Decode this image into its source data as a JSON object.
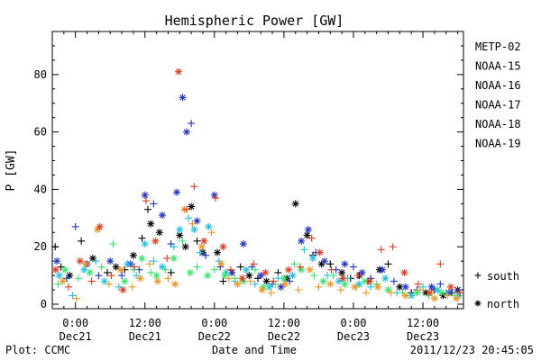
{
  "chart_data": {
    "type": "scatter",
    "title": "Hemispheric Power [GW]",
    "xlabel": "Date and Time",
    "ylabel": "P [GW]",
    "ylim": [
      0,
      95
    ],
    "y_ticks": [
      0,
      20,
      40,
      60,
      80
    ],
    "x_ticks": [
      {
        "time": "0:00",
        "date": "Dec21",
        "h": 0
      },
      {
        "time": "12:00",
        "date": "Dec21",
        "h": 12
      },
      {
        "time": "0:00",
        "date": "Dec22",
        "h": 24
      },
      {
        "time": "12:00",
        "date": "Dec22",
        "h": 36
      },
      {
        "time": "0:00",
        "date": "Dec23",
        "h": 48
      },
      {
        "time": "12:00",
        "date": "Dec23",
        "h": 60
      }
    ],
    "xlim_hours": [
      -4,
      67
    ],
    "grid": false,
    "legend": "right",
    "series": [
      {
        "name": "METP-02",
        "color": "#000000",
        "points": [
          [
            -3.5,
            20
          ],
          [
            -2.5,
            13
          ],
          [
            -1.0,
            10
          ],
          [
            1.0,
            22
          ],
          [
            3.0,
            16
          ],
          [
            5.5,
            11
          ],
          [
            7.0,
            13
          ],
          [
            8.5,
            12
          ],
          [
            10.0,
            17
          ],
          [
            11.5,
            23
          ],
          [
            12.5,
            33
          ],
          [
            13.0,
            28
          ],
          [
            14.5,
            25
          ],
          [
            16.5,
            11
          ],
          [
            18.0,
            24
          ],
          [
            19.0,
            20
          ],
          [
            20.0,
            34
          ],
          [
            21.0,
            22
          ],
          [
            22.0,
            18
          ],
          [
            24.5,
            18
          ],
          [
            25.5,
            8
          ],
          [
            27.0,
            11
          ],
          [
            28.5,
            13
          ],
          [
            30.0,
            10
          ],
          [
            31.5,
            9
          ],
          [
            33.0,
            8
          ],
          [
            35.0,
            11
          ],
          [
            36.5,
            9
          ],
          [
            38.0,
            35
          ],
          [
            40.0,
            24
          ],
          [
            41.0,
            17
          ],
          [
            42.5,
            14
          ],
          [
            44.0,
            14
          ],
          [
            46.0,
            11
          ],
          [
            47.5,
            9
          ],
          [
            49.0,
            10
          ],
          [
            50.5,
            8
          ],
          [
            52.5,
            12
          ],
          [
            54.0,
            14
          ],
          [
            56.0,
            6
          ],
          [
            58.0,
            4
          ],
          [
            60.5,
            4
          ],
          [
            62.0,
            5
          ],
          [
            63.5,
            3
          ],
          [
            65.0,
            4
          ],
          [
            66.0,
            5
          ]
        ],
        "markers": [
          "+",
          "+",
          "*",
          "+",
          "*",
          "+",
          "*",
          "+",
          "*",
          "+",
          "+",
          "*",
          "*",
          "+",
          "*",
          "*",
          "*",
          "+",
          "*",
          "*",
          "+",
          "*",
          "+",
          "*",
          "+",
          "*",
          "+",
          "*",
          "*",
          "*",
          "+",
          "*",
          "+",
          "*",
          "+",
          "*",
          "+",
          "*",
          "+",
          "*",
          "+",
          "*",
          "+",
          "*",
          "+",
          "*"
        ]
      },
      {
        "name": "NOAA-15",
        "color": "#1f2fcf",
        "points": [
          [
            -3.2,
            15
          ],
          [
            -1.5,
            9
          ],
          [
            0.0,
            27
          ],
          [
            2.0,
            14
          ],
          [
            4.0,
            10
          ],
          [
            6.0,
            15
          ],
          [
            8.0,
            10
          ],
          [
            9.5,
            14
          ],
          [
            11.0,
            12
          ],
          [
            12.0,
            38
          ],
          [
            13.5,
            35
          ],
          [
            15.0,
            31
          ],
          [
            16.5,
            21
          ],
          [
            17.5,
            39
          ],
          [
            18.5,
            72
          ],
          [
            19.2,
            60
          ],
          [
            20.0,
            63
          ],
          [
            21.0,
            29
          ],
          [
            22.5,
            17
          ],
          [
            24.0,
            38
          ],
          [
            25.0,
            13
          ],
          [
            27.0,
            11
          ],
          [
            29.0,
            21
          ],
          [
            30.5,
            13
          ],
          [
            32.0,
            10
          ],
          [
            34.0,
            7
          ],
          [
            35.5,
            6
          ],
          [
            37.0,
            8
          ],
          [
            39.0,
            22
          ],
          [
            40.2,
            26
          ],
          [
            41.5,
            18
          ],
          [
            43.0,
            15
          ],
          [
            45.0,
            12
          ],
          [
            46.5,
            14
          ],
          [
            48.0,
            13
          ],
          [
            49.5,
            11
          ],
          [
            51.0,
            9
          ],
          [
            53.0,
            12
          ],
          [
            55.0,
            8
          ],
          [
            57.0,
            6
          ],
          [
            59.0,
            5
          ],
          [
            61.5,
            6
          ],
          [
            63.0,
            7
          ],
          [
            64.5,
            4
          ],
          [
            66.0,
            5
          ]
        ],
        "markers": [
          "*",
          "+",
          "+",
          "*",
          "+",
          "*",
          "+",
          "*",
          "+",
          "*",
          "+",
          "*",
          "+",
          "*",
          "*",
          "*",
          "+",
          "*",
          "+",
          "*",
          "+",
          "*",
          "*",
          "+",
          "*",
          "+",
          "*",
          "+",
          "*",
          "*",
          "+",
          "*",
          "+",
          "*",
          "+",
          "*",
          "+",
          "*",
          "+",
          "*",
          "+",
          "*",
          "+",
          "*",
          "+"
        ]
      },
      {
        "name": "NOAA-16",
        "color": "#18c4e6",
        "points": [
          [
            -2.8,
            10
          ],
          [
            -0.5,
            3
          ],
          [
            1.5,
            12
          ],
          [
            3.5,
            15
          ],
          [
            5.0,
            8
          ],
          [
            7.5,
            6
          ],
          [
            9.0,
            14
          ],
          [
            10.5,
            10
          ],
          [
            12.0,
            21
          ],
          [
            13.5,
            15
          ],
          [
            15.0,
            13
          ],
          [
            17.0,
            20
          ],
          [
            18.0,
            26
          ],
          [
            19.5,
            30
          ],
          [
            20.5,
            26
          ],
          [
            21.5,
            18
          ],
          [
            23.0,
            27
          ],
          [
            24.8,
            15
          ],
          [
            26.0,
            11
          ],
          [
            27.5,
            8
          ],
          [
            29.5,
            12
          ],
          [
            31.0,
            7
          ],
          [
            33.5,
            6
          ],
          [
            35.0,
            9
          ],
          [
            37.5,
            10
          ],
          [
            39.5,
            19
          ],
          [
            41.0,
            16
          ],
          [
            43.5,
            10
          ],
          [
            45.5,
            8
          ],
          [
            47.0,
            9
          ],
          [
            49.0,
            7
          ],
          [
            51.0,
            6
          ],
          [
            53.5,
            9
          ],
          [
            55.5,
            4
          ],
          [
            58.0,
            3
          ],
          [
            60.0,
            6
          ],
          [
            62.5,
            5
          ],
          [
            64.0,
            4
          ],
          [
            66.2,
            3
          ]
        ],
        "markers": [
          "*",
          "+",
          "*",
          "+",
          "*",
          "+",
          "*",
          "+",
          "*",
          "+",
          "*",
          "+",
          "*",
          "+",
          "*",
          "+",
          "*",
          "+",
          "*",
          "+",
          "*",
          "+",
          "*",
          "+",
          "*",
          "+",
          "*",
          "+",
          "*",
          "+",
          "*",
          "+",
          "*",
          "+",
          "*",
          "+",
          "*",
          "+",
          "*"
        ]
      },
      {
        "name": "NOAA-17",
        "color": "#33e86a",
        "points": [
          [
            -3.0,
            7
          ],
          [
            -1.8,
            12
          ],
          [
            0.5,
            9
          ],
          [
            2.5,
            11
          ],
          [
            4.5,
            13
          ],
          [
            6.5,
            21
          ],
          [
            8.5,
            8
          ],
          [
            10.0,
            12
          ],
          [
            11.5,
            16
          ],
          [
            13.0,
            11
          ],
          [
            14.0,
            10
          ],
          [
            15.5,
            12
          ],
          [
            17.0,
            16
          ],
          [
            18.5,
            22
          ],
          [
            19.8,
            11
          ],
          [
            21.0,
            13
          ],
          [
            22.8,
            10
          ],
          [
            24.0,
            12
          ],
          [
            25.8,
            10
          ],
          [
            27.5,
            9
          ],
          [
            29.0,
            8
          ],
          [
            31.0,
            12
          ],
          [
            32.5,
            6
          ],
          [
            34.5,
            7
          ],
          [
            36.0,
            9
          ],
          [
            37.8,
            14
          ],
          [
            39.0,
            12
          ],
          [
            41.2,
            10
          ],
          [
            42.8,
            8
          ],
          [
            44.5,
            10
          ],
          [
            46.5,
            7
          ],
          [
            48.5,
            6
          ],
          [
            50.0,
            8
          ],
          [
            52.0,
            7
          ],
          [
            54.0,
            5
          ],
          [
            56.5,
            4
          ],
          [
            59.0,
            4
          ],
          [
            61.0,
            3
          ],
          [
            63.2,
            4
          ],
          [
            65.5,
            3
          ]
        ],
        "markers": [
          "+",
          "*",
          "+",
          "*",
          "+",
          "+",
          "*",
          "+",
          "*",
          "+",
          "*",
          "+",
          "*",
          "+",
          "*",
          "+",
          "*",
          "+",
          "*",
          "+",
          "*",
          "+",
          "*",
          "+",
          "*",
          "+",
          "*",
          "+",
          "*",
          "+",
          "*",
          "+",
          "*",
          "+",
          "*",
          "+",
          "*",
          "+",
          "*",
          "+"
        ]
      },
      {
        "name": "NOAA-18",
        "color": "#f0961e",
        "points": [
          [
            -2.2,
            8
          ],
          [
            0.2,
            2
          ],
          [
            1.8,
            14
          ],
          [
            3.8,
            26
          ],
          [
            5.8,
            7
          ],
          [
            7.8,
            12
          ],
          [
            9.8,
            6
          ],
          [
            11.2,
            9
          ],
          [
            12.8,
            14
          ],
          [
            14.2,
            8
          ],
          [
            16.0,
            9
          ],
          [
            17.2,
            7
          ],
          [
            18.8,
            33
          ],
          [
            20.2,
            28
          ],
          [
            21.8,
            20
          ],
          [
            23.5,
            25
          ],
          [
            25.2,
            14
          ],
          [
            26.5,
            9
          ],
          [
            28.0,
            7
          ],
          [
            30.2,
            8
          ],
          [
            32.2,
            5
          ],
          [
            33.8,
            4
          ],
          [
            36.2,
            7
          ],
          [
            38.5,
            5
          ],
          [
            40.5,
            12
          ],
          [
            42.0,
            6
          ],
          [
            44.0,
            7
          ],
          [
            45.8,
            5
          ],
          [
            48.2,
            6
          ],
          [
            50.2,
            4
          ],
          [
            52.2,
            6
          ],
          [
            54.5,
            4
          ],
          [
            57.0,
            3
          ],
          [
            59.5,
            5
          ],
          [
            62.0,
            2
          ],
          [
            64.2,
            3
          ],
          [
            65.8,
            2
          ]
        ],
        "markers": [
          "*",
          "+",
          "*",
          "*",
          "+",
          "*",
          "+",
          "*",
          "+",
          "*",
          "+",
          "*",
          "*",
          "+",
          "*",
          "+",
          "*",
          "+",
          "*",
          "+",
          "*",
          "+",
          "*",
          "+",
          "*",
          "+",
          "*",
          "+",
          "*",
          "+",
          "*",
          "+",
          "*",
          "+",
          "*",
          "+",
          "*"
        ]
      },
      {
        "name": "NOAA-19",
        "color": "#e8391c",
        "points": [
          [
            -3.4,
            12
          ],
          [
            -1.2,
            6
          ],
          [
            0.8,
            15
          ],
          [
            2.8,
            8
          ],
          [
            4.2,
            27
          ],
          [
            6.2,
            10
          ],
          [
            8.2,
            5
          ],
          [
            10.2,
            13
          ],
          [
            12.2,
            36
          ],
          [
            13.8,
            22
          ],
          [
            15.8,
            16
          ],
          [
            17.8,
            81
          ],
          [
            19.2,
            33
          ],
          [
            20.5,
            41
          ],
          [
            22.2,
            22
          ],
          [
            24.2,
            37
          ],
          [
            25.5,
            20
          ],
          [
            26.8,
            12
          ],
          [
            28.8,
            9
          ],
          [
            30.8,
            14
          ],
          [
            32.8,
            11
          ],
          [
            34.2,
            8
          ],
          [
            36.8,
            12
          ],
          [
            38.8,
            13
          ],
          [
            40.8,
            23
          ],
          [
            42.2,
            18
          ],
          [
            44.2,
            12
          ],
          [
            46.2,
            9
          ],
          [
            48.8,
            10
          ],
          [
            50.8,
            8
          ],
          [
            52.8,
            19
          ],
          [
            54.8,
            20
          ],
          [
            56.8,
            11
          ],
          [
            59.2,
            7
          ],
          [
            61.2,
            4
          ],
          [
            63.0,
            14
          ],
          [
            64.8,
            6
          ],
          [
            66.4,
            4
          ]
        ],
        "markers": [
          "*",
          "+",
          "*",
          "+",
          "*",
          "+",
          "*",
          "+",
          "+",
          "*",
          "+",
          "*",
          "+",
          "+",
          "*",
          "+",
          "*",
          "+",
          "*",
          "+",
          "*",
          "+",
          "*",
          "+",
          "+",
          "*",
          "+",
          "*",
          "+",
          "*",
          "+",
          "+",
          "*",
          "+",
          "*",
          "+",
          "*",
          "+"
        ]
      }
    ],
    "marker_legend": [
      {
        "symbol": "+",
        "label": "south"
      },
      {
        "symbol": "*",
        "label": "north"
      }
    ]
  },
  "footer": {
    "plot_label": "Plot: CCMC",
    "timestamp": "2011/12/23 20:45:05"
  }
}
